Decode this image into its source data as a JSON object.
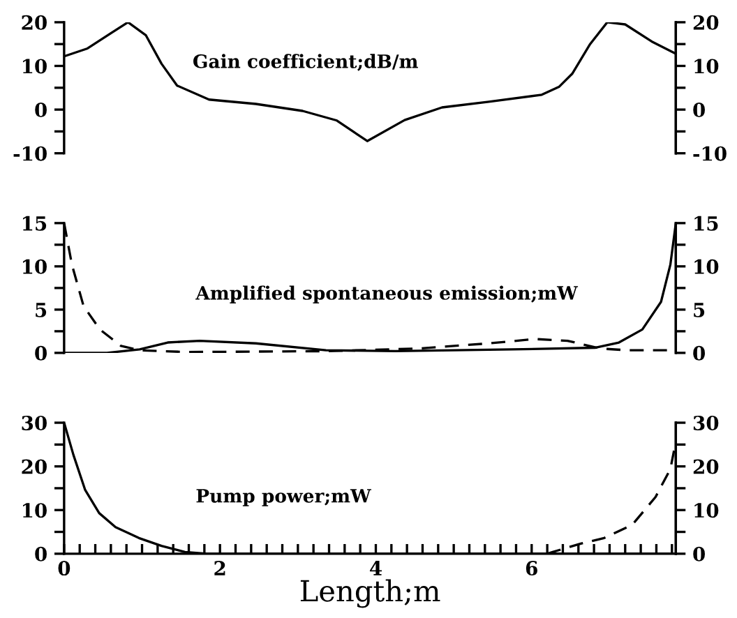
{
  "chart_data": [
    {
      "type": "line",
      "annotations": [
        "Gain coefficient;dB/m"
      ],
      "xlim": [
        0,
        7.85
      ],
      "tick_labels": "y",
      "ylim": [
        -10,
        20
      ],
      "yticks": [
        -10,
        {
          "value": -5,
          "label": null
        },
        0,
        {
          "value": 5,
          "label": null
        },
        10,
        {
          "value": 15,
          "label": null
        },
        20
      ],
      "y2lim": [
        -10,
        20
      ],
      "y2ticks": [
        -10,
        {
          "value": -5,
          "label": null
        },
        0,
        {
          "value": 5,
          "label": null
        },
        10,
        {
          "value": 15,
          "label": null
        },
        20
      ],
      "grid": false,
      "legend": false,
      "series": [
        {
          "color": "#000000",
          "line_style": "solid",
          "x": [
            0,
            0.3,
            0.6,
            0.82,
            1.05,
            1.25,
            1.45,
            1.86,
            2.46,
            3.06,
            3.5,
            3.89,
            4.37,
            4.85,
            5.45,
            6.13,
            6.35,
            6.52,
            6.75,
            6.97,
            7.2,
            7.54,
            7.85
          ],
          "values": [
            12.2,
            14,
            17.5,
            20,
            17,
            10.5,
            5.5,
            2.3,
            1.3,
            -0.3,
            -2.5,
            -7.2,
            -2.4,
            0.5,
            1.8,
            3.4,
            5.2,
            8.2,
            15,
            20,
            19.5,
            15.6,
            12.8
          ]
        }
      ]
    },
    {
      "type": "line",
      "annotations": [
        "Amplified spontaneous emission;mW"
      ],
      "xlim": [
        0,
        7.85
      ],
      "tick_labels": "y",
      "ylim": [
        0,
        15
      ],
      "yticks": [
        0,
        {
          "value": 2.5,
          "label": null
        },
        5,
        {
          "value": 7.5,
          "label": null
        },
        10,
        {
          "value": 12.5,
          "label": null
        },
        15
      ],
      "y2lim": [
        0,
        15
      ],
      "y2ticks": [
        0,
        {
          "value": 2.5,
          "label": null
        },
        5,
        {
          "value": 7.5,
          "label": null
        },
        10,
        {
          "value": 12.5,
          "label": null
        },
        15
      ],
      "grid": false,
      "legend": false,
      "series": [
        {
          "color": "#000000",
          "line_style": "solid",
          "x": [
            0,
            0.55,
            0.97,
            1.33,
            1.74,
            2.46,
            3.36,
            4.25,
            5.75,
            6.82,
            7.12,
            7.42,
            7.66,
            7.78,
            7.85
          ],
          "values": [
            0,
            0,
            0.4,
            1.2,
            1.4,
            1.1,
            0.3,
            0.2,
            0.4,
            0.6,
            1.2,
            2.7,
            5.9,
            10.2,
            15
          ]
        },
        {
          "color": "#000000",
          "line_style": "dashed",
          "x": [
            0,
            0.1,
            0.25,
            0.46,
            0.73,
            0.97,
            1.57,
            3.36,
            4.55,
            5.45,
            6.04,
            6.46,
            6.88,
            7.24,
            7.85
          ],
          "values": [
            15,
            10.2,
            5.4,
            2.7,
            0.8,
            0.3,
            0.1,
            0.2,
            0.5,
            1.1,
            1.6,
            1.4,
            0.5,
            0.3,
            0.3
          ]
        }
      ]
    },
    {
      "type": "line",
      "annotations": [
        "Pump power;mW"
      ],
      "xlabel": "Length;m",
      "xlim": [
        0,
        7.85
      ],
      "xticks": [
        0,
        {
          "value": 0.2,
          "label": null
        },
        {
          "value": 0.4,
          "label": null
        },
        {
          "value": 0.6,
          "label": null
        },
        {
          "value": 0.8,
          "label": null
        },
        {
          "value": 1,
          "label": null
        },
        {
          "value": 1.2,
          "label": null
        },
        {
          "value": 1.4,
          "label": null
        },
        {
          "value": 1.6,
          "label": null
        },
        {
          "value": 1.8,
          "label": null
        },
        2,
        {
          "value": 2.2,
          "label": null
        },
        {
          "value": 2.4,
          "label": null
        },
        {
          "value": 2.6,
          "label": null
        },
        {
          "value": 2.8,
          "label": null
        },
        {
          "value": 3,
          "label": null
        },
        {
          "value": 3.2,
          "label": null
        },
        {
          "value": 3.4,
          "label": null
        },
        {
          "value": 3.6,
          "label": null
        },
        {
          "value": 3.8,
          "label": null
        },
        4,
        {
          "value": 4.2,
          "label": null
        },
        {
          "value": 4.4,
          "label": null
        },
        {
          "value": 4.6,
          "label": null
        },
        {
          "value": 4.8,
          "label": null
        },
        {
          "value": 5,
          "label": null
        },
        {
          "value": 5.2,
          "label": null
        },
        {
          "value": 5.4,
          "label": null
        },
        {
          "value": 5.6,
          "label": null
        },
        {
          "value": 5.8,
          "label": null
        },
        6,
        {
          "value": 6.2,
          "label": null
        },
        {
          "value": 6.4,
          "label": null
        },
        {
          "value": 6.6,
          "label": null
        },
        {
          "value": 6.8,
          "label": null
        },
        {
          "value": 7,
          "label": null
        },
        {
          "value": 7.2,
          "label": null
        },
        {
          "value": 7.4,
          "label": null
        },
        {
          "value": 7.6,
          "label": null
        },
        {
          "value": 7.8,
          "label": null
        }
      ],
      "ylim": [
        0,
        30
      ],
      "yticks": [
        0,
        {
          "value": 5,
          "label": null
        },
        10,
        {
          "value": 15,
          "label": null
        },
        20,
        {
          "value": 25,
          "label": null
        },
        30
      ],
      "y2lim": [
        0,
        30
      ],
      "y2ticks": [
        0,
        {
          "value": 5,
          "label": null
        },
        10,
        {
          "value": 15,
          "label": null
        },
        20,
        {
          "value": 25,
          "label": null
        },
        30
      ],
      "grid": false,
      "legend": false,
      "series": [
        {
          "color": "#000000",
          "line_style": "solid",
          "x": [
            0,
            0.12,
            0.27,
            0.45,
            0.66,
            0.96,
            1.25,
            1.55,
            1.84,
            4,
            7.85
          ],
          "values": [
            30,
            22.6,
            14.6,
            9.3,
            6.1,
            3.6,
            1.8,
            0.4,
            0,
            0,
            0
          ]
        },
        {
          "color": "#000000",
          "line_style": "dashed",
          "x": [
            6.2,
            6.27,
            6.63,
            6.93,
            7.29,
            7.59,
            7.78,
            7.85
          ],
          "values": [
            0,
            0.4,
            2.3,
            3.6,
            6.6,
            13,
            19.4,
            25.7
          ]
        }
      ]
    }
  ]
}
